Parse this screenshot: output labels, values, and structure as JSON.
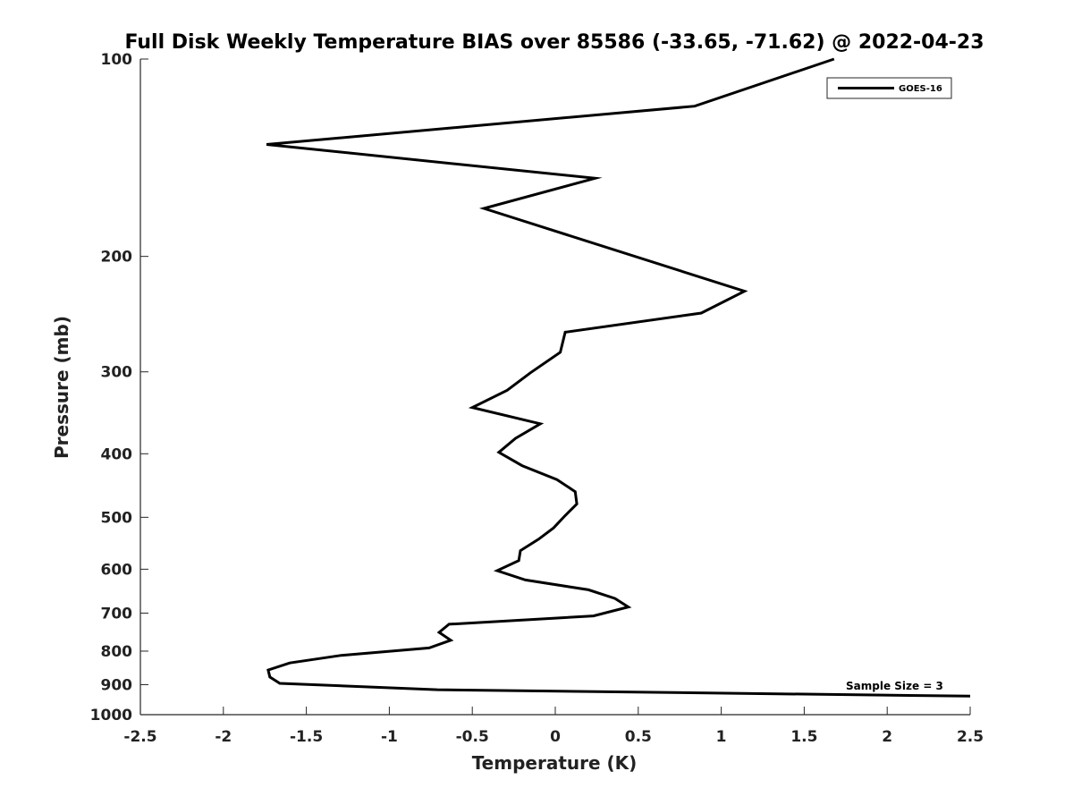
{
  "chart_data": {
    "type": "line",
    "title": "Full Disk Weekly Temperature BIAS over 85586 (-33.65, -71.62) @ 2022-04-23",
    "xlabel": "Temperature (K)",
    "ylabel": "Pressure (mb)",
    "xlim": [
      -2.5,
      2.5
    ],
    "ylim": [
      100,
      1000
    ],
    "y_scale": "log",
    "y_reversed": true,
    "x_ticks": [
      -2.5,
      -2,
      -1.5,
      -1,
      -0.5,
      0,
      0.5,
      1,
      1.5,
      2,
      2.5
    ],
    "x_tick_labels": [
      "-2.5",
      "-2",
      "-1.5",
      "-1",
      "-0.5",
      "0",
      "0.5",
      "1",
      "1.5",
      "2",
      "2.5"
    ],
    "y_ticks": [
      100,
      200,
      300,
      400,
      500,
      600,
      700,
      800,
      900,
      1000
    ],
    "y_tick_labels": [
      "100",
      "200",
      "300",
      "400",
      "500",
      "600",
      "700",
      "800",
      "900",
      "1000"
    ],
    "grid": false,
    "legend": {
      "placement": "top-right",
      "entries": [
        "GOES-16"
      ]
    },
    "annotation": "Sample Size = 3",
    "colors": {
      "line": "#000000",
      "axes": "#262626"
    },
    "series": [
      {
        "name": "GOES-16",
        "points": [
          [
            1.68,
            100
          ],
          [
            0.84,
            118
          ],
          [
            -1.74,
            135
          ],
          [
            0.24,
            152
          ],
          [
            -0.43,
            169
          ],
          [
            1.14,
            226
          ],
          [
            0.88,
            244
          ],
          [
            0.06,
            261
          ],
          [
            0.03,
            280
          ],
          [
            -0.15,
            301
          ],
          [
            -0.29,
            320
          ],
          [
            -0.5,
            340
          ],
          [
            -0.09,
            360
          ],
          [
            -0.24,
            379
          ],
          [
            -0.34,
            398
          ],
          [
            -0.2,
            417
          ],
          [
            0.01,
            438
          ],
          [
            0.12,
            457
          ],
          [
            0.13,
            477
          ],
          [
            0.06,
            497
          ],
          [
            -0.01,
            519
          ],
          [
            -0.1,
            540
          ],
          [
            -0.21,
            562
          ],
          [
            -0.22,
            582
          ],
          [
            -0.35,
            603
          ],
          [
            -0.18,
            623
          ],
          [
            0.2,
            645
          ],
          [
            0.36,
            665
          ],
          [
            0.44,
            685
          ],
          [
            0.23,
            707
          ],
          [
            -0.64,
            728
          ],
          [
            -0.7,
            749
          ],
          [
            -0.63,
            770
          ],
          [
            -0.76,
            791
          ],
          [
            -1.29,
            812
          ],
          [
            -1.6,
            834
          ],
          [
            -1.73,
            855
          ],
          [
            -1.72,
            876
          ],
          [
            -1.66,
            896
          ],
          [
            -0.71,
            916
          ],
          [
            2.5,
            937
          ]
        ]
      }
    ]
  }
}
